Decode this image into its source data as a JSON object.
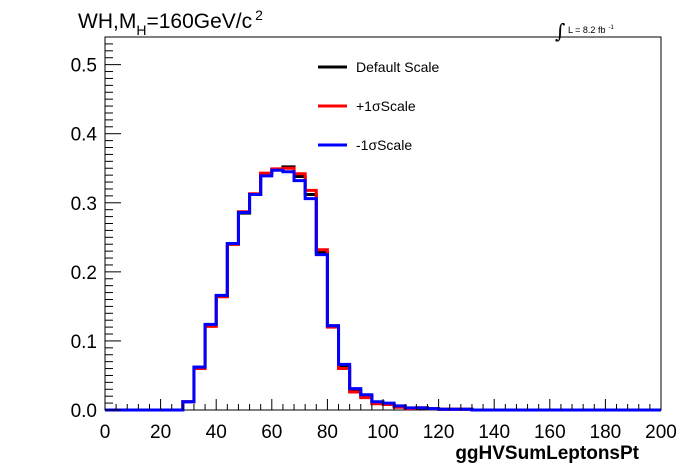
{
  "chart_data": {
    "type": "line",
    "title": {
      "prefix": "WH,M",
      "subscript": "H",
      "middle": "=160GeV/c",
      "superscript": "2"
    },
    "lumi": {
      "text": "L = 8.2 fb",
      "superscript": "-1"
    },
    "xlabel": "ggHVSumLeptonsPt",
    "ylabel": "",
    "xlim": [
      0,
      200
    ],
    "ylim": [
      0,
      0.54
    ],
    "x_ticks": [
      "0",
      "20",
      "40",
      "60",
      "80",
      "100",
      "120",
      "140",
      "160",
      "180",
      "200"
    ],
    "y_ticks": [
      "0.0",
      "0.1",
      "0.2",
      "0.3",
      "0.4",
      "0.5"
    ],
    "bin_edges": [
      0,
      4,
      8,
      12,
      16,
      20,
      24,
      28,
      32,
      36,
      40,
      44,
      48,
      52,
      56,
      60,
      64,
      68,
      72,
      76,
      80,
      84,
      88,
      92,
      96,
      100,
      104,
      108,
      112,
      116,
      120,
      124,
      128,
      132,
      136,
      140,
      144,
      148,
      152,
      156,
      160,
      164,
      168,
      172,
      176,
      180,
      184,
      188,
      192,
      196,
      200
    ],
    "series": [
      {
        "name": "Default Scale",
        "color": "#000000",
        "values": [
          0,
          0,
          0,
          0,
          0,
          0,
          0,
          0.012,
          0.062,
          0.123,
          0.165,
          0.24,
          0.285,
          0.312,
          0.342,
          0.348,
          0.352,
          0.338,
          0.312,
          0.228,
          0.122,
          0.063,
          0.028,
          0.02,
          0.01,
          0.008,
          0.005,
          0.002,
          0.003,
          0.002,
          0.001,
          0.001,
          0.001,
          0,
          0,
          0,
          0,
          0,
          0,
          0,
          0,
          0,
          0,
          0,
          0,
          0,
          0,
          0,
          0,
          0
        ]
      },
      {
        "name": "+1σScale",
        "color": "#ff0000",
        "values": [
          0,
          0,
          0,
          0,
          0,
          0,
          0,
          0.012,
          0.06,
          0.121,
          0.164,
          0.24,
          0.287,
          0.313,
          0.343,
          0.349,
          0.35,
          0.342,
          0.318,
          0.232,
          0.12,
          0.06,
          0.026,
          0.018,
          0.009,
          0.008,
          0.004,
          0.002,
          0.003,
          0.002,
          0.001,
          0.001,
          0.001,
          0,
          0,
          0,
          0,
          0,
          0,
          0,
          0,
          0,
          0,
          0,
          0,
          0,
          0,
          0,
          0,
          0
        ]
      },
      {
        "name": "-1σScale",
        "color": "#0000ff",
        "values": [
          0,
          0,
          0,
          0,
          0,
          0,
          0,
          0.012,
          0.062,
          0.124,
          0.166,
          0.241,
          0.286,
          0.312,
          0.339,
          0.347,
          0.345,
          0.332,
          0.306,
          0.225,
          0.122,
          0.066,
          0.031,
          0.022,
          0.012,
          0.01,
          0.006,
          0.003,
          0.003,
          0.002,
          0.001,
          0.001,
          0.001,
          0,
          0,
          0,
          0,
          0,
          0,
          0,
          0,
          0,
          0,
          0,
          0,
          0,
          0,
          0,
          0,
          0
        ]
      }
    ],
    "legend_position": "top-center",
    "grid": false
  }
}
